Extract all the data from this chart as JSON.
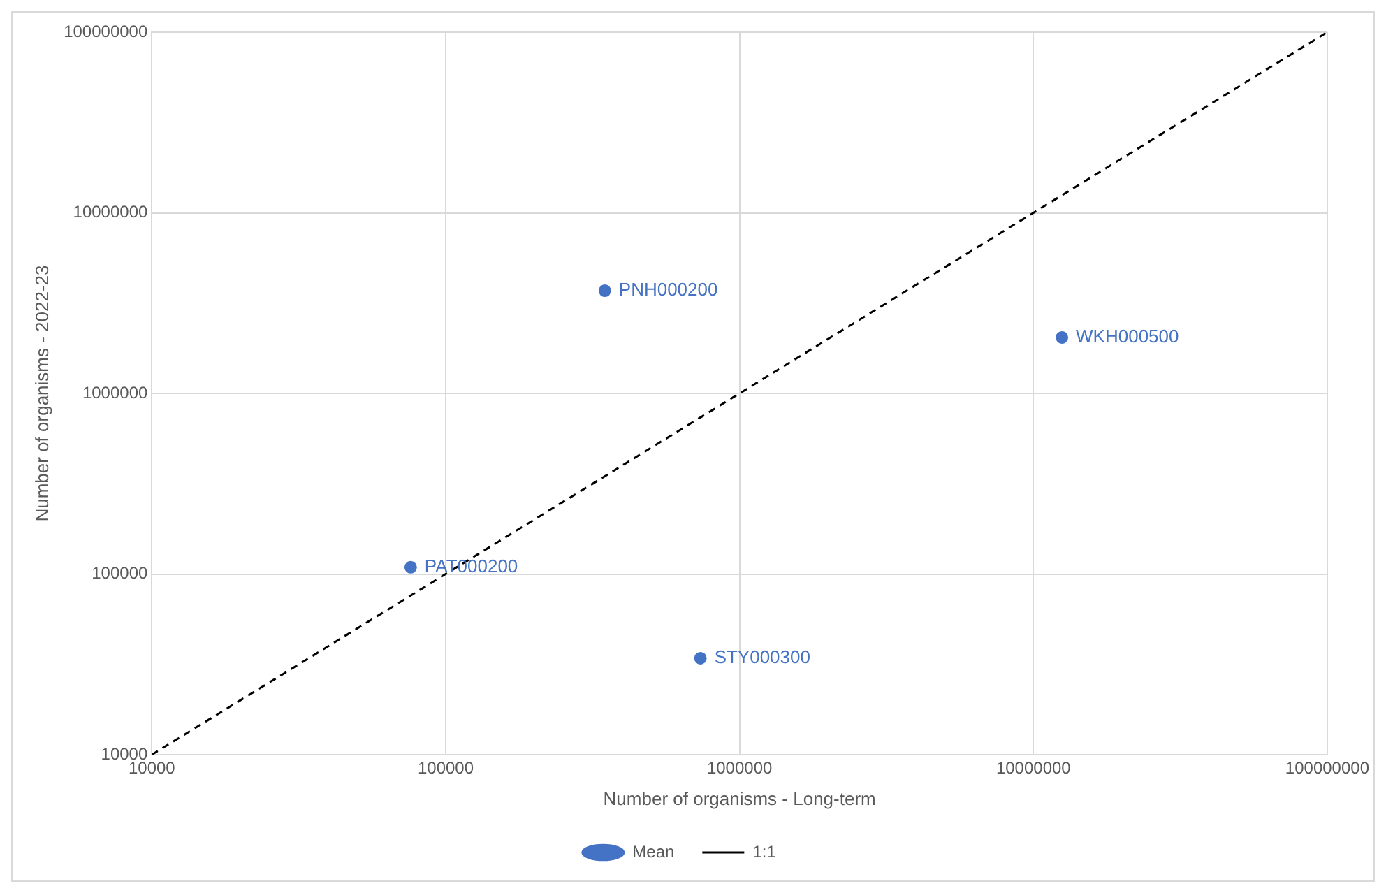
{
  "chart_data": {
    "type": "scatter",
    "xlabel": "Number of organisms - Long-term",
    "ylabel": "Number of organisms - 2022-23",
    "x": [
      348000,
      12500000,
      76000,
      736000
    ],
    "series": [
      {
        "name": "Mean",
        "type": "scatter",
        "color": "#4472c4",
        "marker": "circle",
        "values": [
          3700000,
          2040000,
          109000,
          34200
        ]
      },
      {
        "name": "1:1",
        "type": "line",
        "color": "#000000",
        "line_style": "dashed",
        "marker": "none",
        "x": [
          10000,
          100000000
        ],
        "values": [
          10000,
          100000000
        ]
      }
    ],
    "annotations": [
      {
        "text": "PNH000200",
        "x": 348000,
        "y": 3700000
      },
      {
        "text": "WKH000500",
        "x": 12500000,
        "y": 2040000
      },
      {
        "text": "PAT000200",
        "x": 76000,
        "y": 109000
      },
      {
        "text": "STY000300",
        "x": 736000,
        "y": 34200
      }
    ],
    "log": "xy",
    "xlim": [
      10000,
      100000000
    ],
    "ylim": [
      10000,
      100000000
    ],
    "xticks": [
      10000,
      100000,
      1000000,
      10000000,
      100000000
    ],
    "yticks": [
      10000,
      100000,
      1000000,
      10000000,
      100000000
    ],
    "grid": true,
    "legend": "bottom"
  }
}
